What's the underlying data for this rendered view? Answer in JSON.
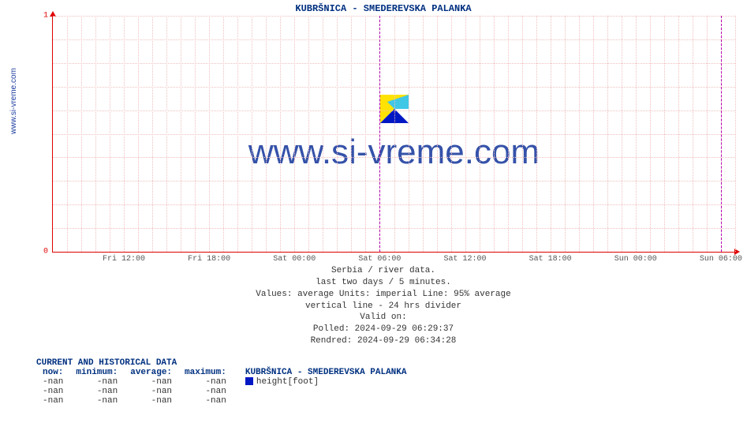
{
  "title": "KUBRŠNICA -  SMEDEREVSKA PALANKA",
  "side_label": "www.si-vreme.com",
  "watermark": "www.si-vreme.com",
  "chart": {
    "type": "line",
    "ylim": [
      0,
      1
    ],
    "yticks": [
      0,
      1
    ],
    "xticks": [
      "Fri 12:00",
      "Fri 18:00",
      "Sat 00:00",
      "Sat 06:00",
      "Sat 12:00",
      "Sat 18:00",
      "Sun 00:00",
      "Sun 06:00"
    ],
    "xtick_positions_pct": [
      10.4,
      22.9,
      35.4,
      47.9,
      60.4,
      72.9,
      85.4,
      97.9
    ],
    "minor_grid_x_cols": 48,
    "minor_grid_y_rows": 10,
    "divider_positions_pct": [
      47.9,
      97.9
    ],
    "grid_color": "#f0c0c0",
    "axis_color": "#e00000",
    "divider_color": "#b000b0",
    "background_color": "#ffffff",
    "label_fontsize": 10,
    "title_fontsize": 12,
    "title_color": "#003080"
  },
  "logo": {
    "size": 36,
    "colors": {
      "tl": "#ffe200",
      "tr": "#40c7e6",
      "bl": "#0018c4",
      "br": "#ffffff"
    }
  },
  "caption": {
    "line1": "Serbia / river data.",
    "line2": "last two days / 5 minutes.",
    "line3": "Values: average  Units: imperial  Line: 95% average",
    "line4": "vertical line - 24 hrs  divider",
    "line5": "Valid on:",
    "line6": "Polled: 2024-09-29 06:29:37",
    "line7": "Rendred: 2024-09-29 06:34:28"
  },
  "table": {
    "title": "CURRENT AND HISTORICAL DATA",
    "headers": [
      "now:",
      "minimum:",
      "average:",
      "maximum:"
    ],
    "series_label": "KUBRŠNICA -  SMEDEREVSKA PALANKA",
    "series_color": "#0018c4",
    "series_unit": "height[foot]",
    "rows": [
      [
        "-nan",
        "-nan",
        "-nan",
        "-nan"
      ],
      [
        "-nan",
        "-nan",
        "-nan",
        "-nan"
      ],
      [
        "-nan",
        "-nan",
        "-nan",
        "-nan"
      ]
    ]
  }
}
